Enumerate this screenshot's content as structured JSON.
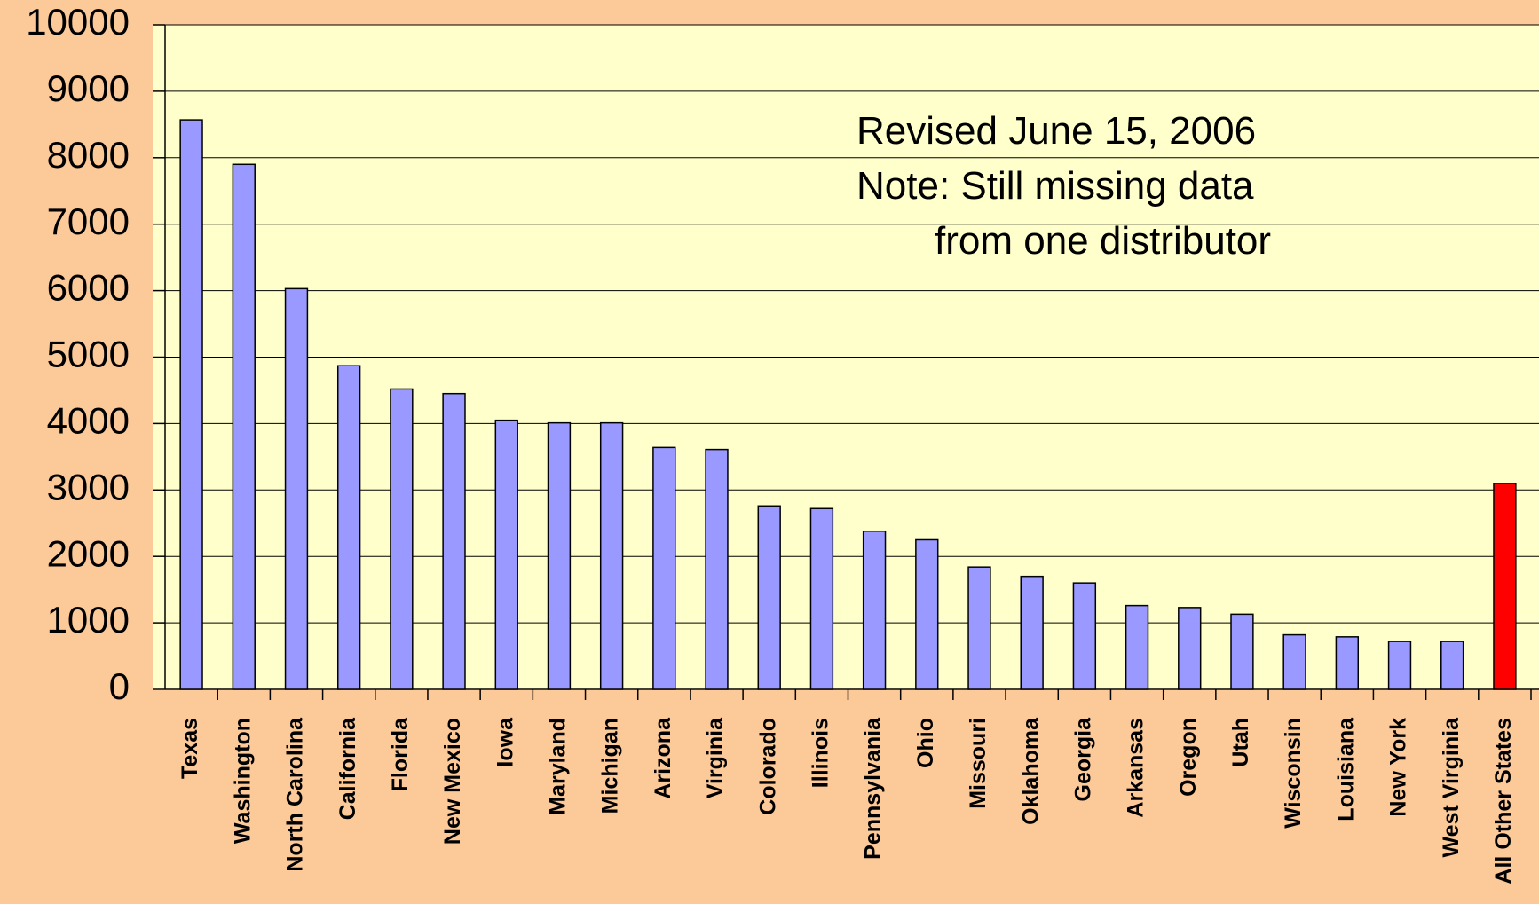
{
  "chart_data": {
    "type": "bar",
    "categories": [
      "Texas",
      "Washington",
      "North Carolina",
      "California",
      "Florida",
      "New Mexico",
      "Iowa",
      "Maryland",
      "Michigan",
      "Arizona",
      "Virginia",
      "Colorado",
      "Illinois",
      "Pennsylvania",
      "Ohio",
      "Missouri",
      "Oklahoma",
      "Georgia",
      "Arkansas",
      "Oregon",
      "Utah",
      "Wisconsin",
      "Louisiana",
      "New York",
      "West Virginia",
      "All Other States"
    ],
    "values": [
      8570,
      7900,
      6030,
      4870,
      4520,
      4450,
      4050,
      4010,
      4010,
      3640,
      3610,
      2760,
      2720,
      2380,
      2250,
      1840,
      1700,
      1600,
      1260,
      1230,
      1130,
      820,
      790,
      720,
      720,
      3100
    ],
    "colors": [
      "#9999ff",
      "#9999ff",
      "#9999ff",
      "#9999ff",
      "#9999ff",
      "#9999ff",
      "#9999ff",
      "#9999ff",
      "#9999ff",
      "#9999ff",
      "#9999ff",
      "#9999ff",
      "#9999ff",
      "#9999ff",
      "#9999ff",
      "#9999ff",
      "#9999ff",
      "#9999ff",
      "#9999ff",
      "#9999ff",
      "#9999ff",
      "#9999ff",
      "#9999ff",
      "#9999ff",
      "#9999ff",
      "#ff0000"
    ],
    "annotations": [
      "Revised June 15, 2006",
      "Note: Still missing data",
      "from one distributor"
    ],
    "ylim": [
      0,
      10000
    ],
    "yticks": [
      0,
      1000,
      2000,
      3000,
      4000,
      5000,
      6000,
      7000,
      8000,
      9000,
      10000
    ],
    "grid": true
  }
}
